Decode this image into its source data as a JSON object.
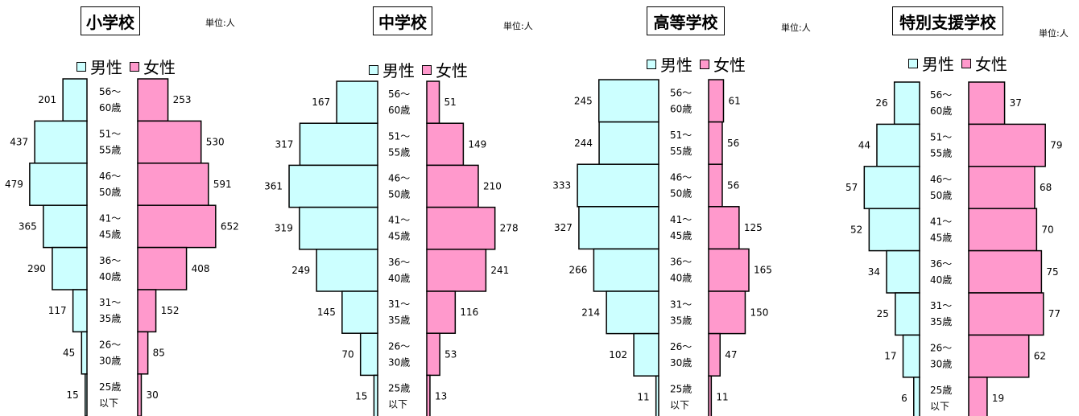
{
  "colors": {
    "male": "#ccffff",
    "female": "#ff99cc",
    "edge": "#000000"
  },
  "chart_data": [
    {
      "type": "bar",
      "title": "小学校",
      "unit": "単位:人",
      "legend": [
        "男性",
        "女性"
      ],
      "categories": [
        [
          "56～",
          "60歳"
        ],
        [
          "51～",
          "55歳"
        ],
        [
          "46～",
          "50歳"
        ],
        [
          "41～",
          "45歳"
        ],
        [
          "36～",
          "40歳"
        ],
        [
          "31～",
          "35歳"
        ],
        [
          "26～",
          "30歳"
        ],
        [
          "25歳",
          "以下"
        ]
      ],
      "series": [
        {
          "name": "男性",
          "values": [
            201,
            437,
            479,
            365,
            290,
            117,
            45,
            15
          ]
        },
        {
          "name": "女性",
          "values": [
            253,
            530,
            591,
            652,
            408,
            152,
            85,
            30
          ]
        }
      ]
    },
    {
      "type": "bar",
      "title": "中学校",
      "unit": "単位:人",
      "legend": [
        "男性",
        "女性"
      ],
      "categories": [
        [
          "56～",
          "60歳"
        ],
        [
          "51～",
          "55歳"
        ],
        [
          "46～",
          "50歳"
        ],
        [
          "41～",
          "45歳"
        ],
        [
          "36～",
          "40歳"
        ],
        [
          "31～",
          "35歳"
        ],
        [
          "26～",
          "30歳"
        ],
        [
          "25歳",
          "以下"
        ]
      ],
      "series": [
        {
          "name": "男性",
          "values": [
            167,
            317,
            361,
            319,
            249,
            145,
            70,
            15
          ]
        },
        {
          "name": "女性",
          "values": [
            51,
            149,
            210,
            278,
            241,
            116,
            53,
            13
          ]
        }
      ]
    },
    {
      "type": "bar",
      "title": "高等学校",
      "unit": "単位:人",
      "legend": [
        "男性",
        "女性"
      ],
      "categories": [
        [
          "56～",
          "60歳"
        ],
        [
          "51～",
          "55歳"
        ],
        [
          "46～",
          "50歳"
        ],
        [
          "41～",
          "45歳"
        ],
        [
          "36～",
          "40歳"
        ],
        [
          "31～",
          "35歳"
        ],
        [
          "26～",
          "30歳"
        ],
        [
          "25歳",
          "以下"
        ]
      ],
      "series": [
        {
          "name": "男性",
          "values": [
            245,
            244,
            333,
            327,
            266,
            214,
            102,
            11
          ]
        },
        {
          "name": "女性",
          "values": [
            61,
            56,
            56,
            125,
            165,
            150,
            47,
            11
          ]
        }
      ]
    },
    {
      "type": "bar",
      "title": "特別支援学校",
      "unit": "単位:人",
      "legend": [
        "男性",
        "女性"
      ],
      "categories": [
        [
          "56～",
          "60歳"
        ],
        [
          "51～",
          "55歳"
        ],
        [
          "46～",
          "50歳"
        ],
        [
          "41～",
          "45歳"
        ],
        [
          "36～",
          "40歳"
        ],
        [
          "31～",
          "35歳"
        ],
        [
          "26～",
          "30歳"
        ],
        [
          "25歳",
          "以下"
        ]
      ],
      "series": [
        {
          "name": "男性",
          "values": [
            26,
            44,
            57,
            52,
            34,
            25,
            17,
            6
          ]
        },
        {
          "name": "女性",
          "values": [
            37,
            79,
            68,
            70,
            75,
            77,
            62,
            19
          ]
        }
      ]
    }
  ]
}
